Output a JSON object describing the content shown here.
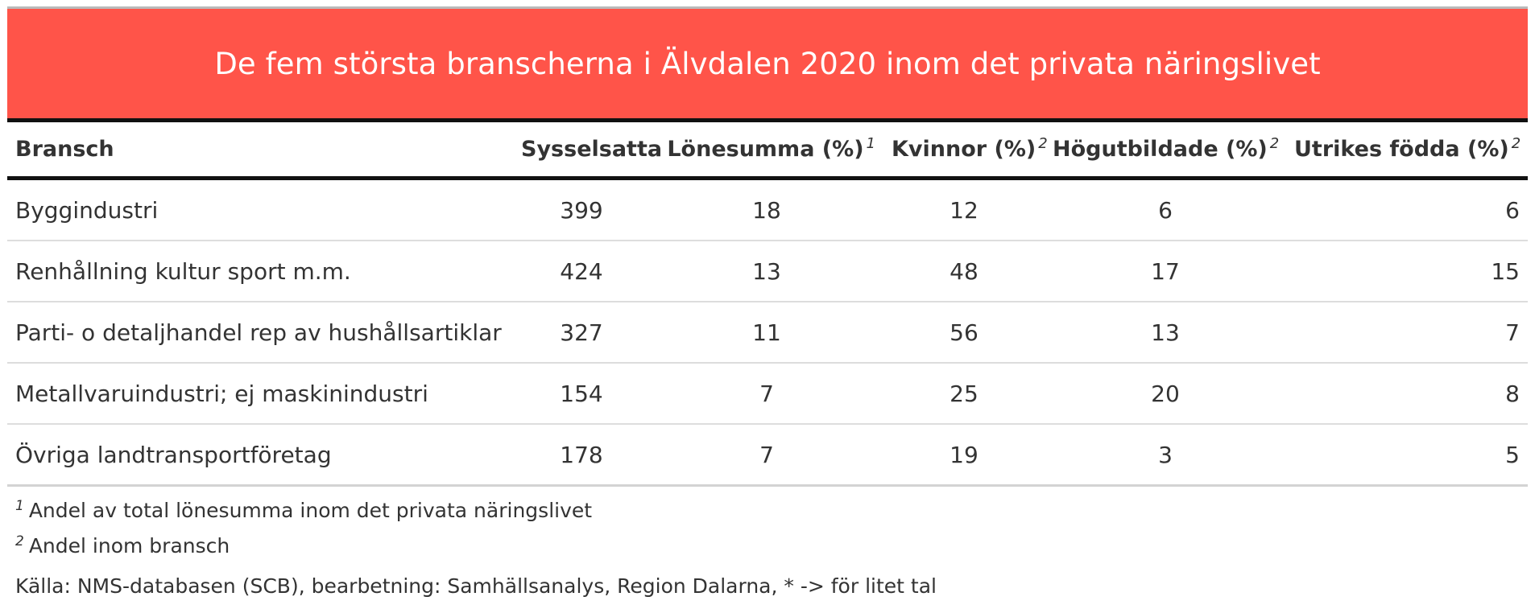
{
  "title": "De fem största branscherna i Älvdalen 2020 inom det privata näringslivet",
  "colors": {
    "title_bg": "#ff5449",
    "title_text": "#ffffff",
    "header_rule": "#111111",
    "row_rule": "#dddddd"
  },
  "table": {
    "headers": [
      {
        "label": "Bransch",
        "note": ""
      },
      {
        "label": "Sysselsatta",
        "note": ""
      },
      {
        "label": "Lönesumma (%)",
        "note": "1"
      },
      {
        "label": "Kvinnor (%)",
        "note": "2"
      },
      {
        "label": "Högutbildade (%)",
        "note": "2"
      },
      {
        "label": "Utrikes födda (%)",
        "note": "2"
      }
    ],
    "rows": [
      [
        "Byggindustri",
        "399",
        "18",
        "12",
        "6",
        "6"
      ],
      [
        "Renhållning kultur sport m.m.",
        "424",
        "13",
        "48",
        "17",
        "15"
      ],
      [
        "Parti- o detaljhandel rep av hushållsartiklar",
        "327",
        "11",
        "56",
        "13",
        "7"
      ],
      [
        "Metallvaruindustri; ej maskinindustri",
        "154",
        "7",
        "25",
        "20",
        "8"
      ],
      [
        "Övriga landtransportföretag",
        "178",
        "7",
        "19",
        "3",
        "5"
      ]
    ]
  },
  "footnotes": [
    {
      "mark": "1",
      "text": "Andel av total lönesumma inom det privata näringslivet"
    },
    {
      "mark": "2",
      "text": "Andel inom bransch"
    }
  ],
  "source": "Källa: NMS-databasen (SCB), bearbetning: Samhällsanalys, Region Dalarna, * -> för litet tal"
}
